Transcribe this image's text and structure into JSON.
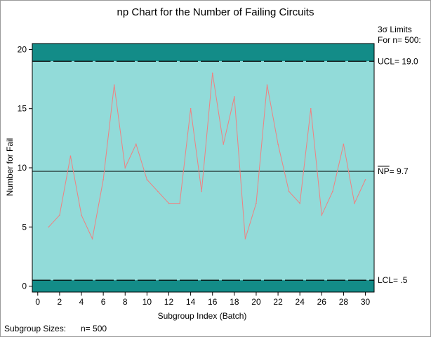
{
  "chart_data": {
    "type": "line",
    "title": "np Chart for the Number of Failing Circuits",
    "xlabel": "Subgroup Index (Batch)",
    "ylabel": "Number for Fail",
    "xlim": [
      -0.5,
      30.8
    ],
    "ylim": [
      -0.5,
      20.5
    ],
    "x_ticks": [
      "0",
      "2",
      "4",
      "6",
      "8",
      "10",
      "12",
      "14",
      "16",
      "18",
      "20",
      "22",
      "24",
      "26",
      "28",
      "30"
    ],
    "y_ticks": [
      "0",
      "5",
      "10",
      "15",
      "20"
    ],
    "series": [
      {
        "x": [
          1,
          2,
          3,
          4,
          5,
          6,
          7,
          8,
          9,
          10,
          11,
          12,
          13,
          14,
          15,
          16,
          17,
          18,
          19,
          20,
          21,
          22,
          23,
          24,
          25,
          26,
          27,
          28,
          29,
          30
        ],
        "values": [
          5,
          6,
          11,
          6,
          4,
          9,
          17,
          10,
          12,
          9,
          8,
          7,
          7,
          15,
          8,
          18,
          12,
          16,
          4,
          7,
          17,
          12,
          8,
          7,
          15,
          6,
          8,
          12,
          7,
          9
        ]
      }
    ],
    "limits": {
      "ucl": 19.0,
      "center": 9.7,
      "lcl": 0.5,
      "header_line1": "3σ Limits",
      "header_line2": "For n= 500:",
      "ucl_label": "UCL= 19.0",
      "center_prefix": "NP",
      "center_label": "= 9.7",
      "lcl_label": "LCL= .5"
    },
    "footnote": {
      "label": "Subgroup Sizes:",
      "value": "n= 500"
    },
    "colors": {
      "inner_band": "#92DBD9",
      "outer_band": "#138C88",
      "series_line": "#F08080",
      "axis": "#000000"
    }
  }
}
